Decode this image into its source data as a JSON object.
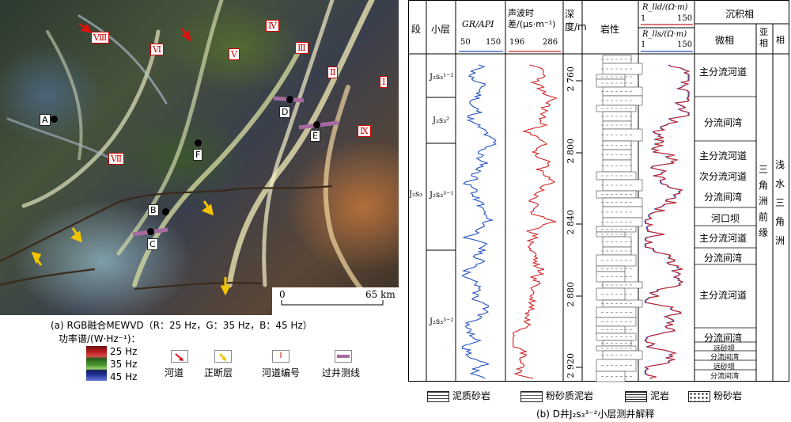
{
  "map_panel": {
    "caption": "(a) RGB融合MEWVD（R：25 Hz，G：35 Hz，B：45 Hz）",
    "wells": [
      "A",
      "B",
      "C",
      "D",
      "E",
      "F"
    ],
    "channels": [
      "Ⅰ",
      "Ⅱ",
      "Ⅲ",
      "Ⅳ",
      "Ⅴ",
      "Ⅵ",
      "Ⅶ",
      "Ⅷ",
      "Ⅸ"
    ],
    "scale": {
      "zero": "0",
      "end": "65 km"
    },
    "power_legend_title": "功率谱/(W·Hz⁻¹)：",
    "power_legend": [
      "25 Hz",
      "35 Hz",
      "45 Hz"
    ],
    "symbol_legend": [
      {
        "label": "河道",
        "color": "#cc0000"
      },
      {
        "label": "正断层",
        "color": "#f2c400"
      },
      {
        "label": "河道编号",
        "symbol": "Ⅰ"
      },
      {
        "label": "过井测线",
        "color": "#a66aa0"
      }
    ]
  },
  "log_panel": {
    "caption": "(b) D井J₂s₃³⁻²小层测井解释",
    "headers": {
      "segment": "段",
      "sublayer": "小层",
      "gr": "GR/API",
      "gr_range": [
        "50",
        "150"
      ],
      "ac": "声波时差/(μs·m⁻¹)",
      "ac_range": [
        "196",
        "286"
      ],
      "depth": "深度/m",
      "lithology": "岩性",
      "res": "R_lld/(Ω·m)",
      "res2": "R_lls/(Ω·m)",
      "res_range": [
        "1",
        "150"
      ],
      "facies": "沉积相",
      "microfacies": "微相",
      "subfacies": "亚相",
      "facies_col": "相"
    },
    "segment_label": "J₂s₃",
    "sublayers": [
      "J₂s₃¹⁻²",
      "J₂s₃²",
      "J₂s₃³⁻¹",
      "J₂s₃³⁻²"
    ],
    "depth_ticks": [
      "2 760",
      "2 800",
      "2 840",
      "2 880",
      "2 920"
    ],
    "microfacies": [
      "主分流河道",
      "分流间湾",
      "主分流河道",
      "次分流河道",
      "分流间湾",
      "河口坝",
      "主分流河道",
      "分流间湾",
      "主分流河道",
      "分流间湾",
      "远砂坝",
      "分流间湾",
      "远砂坝",
      "分流间湾"
    ],
    "subfacies": "三角洲前缘",
    "facies": "浅水三角洲",
    "lith_legend": [
      "泥质砂岩",
      "粉砂质泥岩",
      "泥岩",
      "粉砂岩"
    ]
  }
}
